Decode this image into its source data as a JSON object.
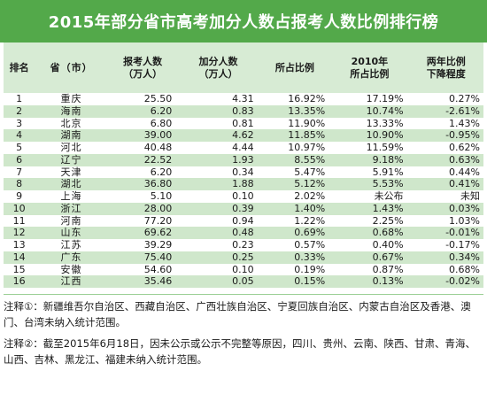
{
  "title": "2015年部分省市高考加分人数占报考人数比例排行榜",
  "columns": [
    {
      "l1": "排名",
      "l2": ""
    },
    {
      "l1": "省（市）",
      "l2": ""
    },
    {
      "l1": "报考人数",
      "l2": "（万人）"
    },
    {
      "l1": "加分人数",
      "l2": "（万人）"
    },
    {
      "l1": "所占比例",
      "l2": ""
    },
    {
      "l1": "2010年",
      "l2": "所占比例"
    },
    {
      "l1": "两年比例",
      "l2": "下降程度"
    }
  ],
  "rows": [
    [
      "1",
      "重庆",
      "25.50",
      "4.31",
      "16.92%",
      "17.19%",
      "0.27%"
    ],
    [
      "2",
      "海南",
      "6.20",
      "0.83",
      "13.35%",
      "10.74%",
      "-2.61%"
    ],
    [
      "3",
      "北京",
      "6.80",
      "0.81",
      "11.90%",
      "13.33%",
      "1.43%"
    ],
    [
      "4",
      "湖南",
      "39.00",
      "4.62",
      "11.85%",
      "10.90%",
      "-0.95%"
    ],
    [
      "5",
      "河北",
      "40.48",
      "4.44",
      "10.97%",
      "11.59%",
      "0.62%"
    ],
    [
      "6",
      "辽宁",
      "22.52",
      "1.93",
      "8.55%",
      "9.18%",
      "0.63%"
    ],
    [
      "7",
      "天津",
      "6.20",
      "0.34",
      "5.47%",
      "5.91%",
      "0.44%"
    ],
    [
      "8",
      "湖北",
      "36.80",
      "1.88",
      "5.12%",
      "5.53%",
      "0.41%"
    ],
    [
      "9",
      "上海",
      "5.10",
      "0.10",
      "2.02%",
      "未公布",
      "未知"
    ],
    [
      "10",
      "浙江",
      "28.00",
      "0.39",
      "1.40%",
      "1.43%",
      "0.03%"
    ],
    [
      "11",
      "河南",
      "77.20",
      "0.94",
      "1.22%",
      "2.25%",
      "1.03%"
    ],
    [
      "12",
      "山东",
      "69.62",
      "0.48",
      "0.69%",
      "0.68%",
      "-0.01%"
    ],
    [
      "13",
      "江苏",
      "39.29",
      "0.23",
      "0.57%",
      "0.40%",
      "-0.17%"
    ],
    [
      "14",
      "广东",
      "75.40",
      "0.25",
      "0.33%",
      "0.67%",
      "0.34%"
    ],
    [
      "15",
      "安徽",
      "54.60",
      "0.10",
      "0.19%",
      "0.87%",
      "0.68%"
    ],
    [
      "16",
      "江西",
      "35.46",
      "0.05",
      "0.15%",
      "0.13%",
      "-0.02%"
    ]
  ],
  "notes": [
    "注释①：新疆维吾尔自治区、西藏自治区、广西壮族自治区、宁夏回族自治区、内蒙古自治区及香港、澳门、台湾未纳入统计范围。",
    "注释②：截至2015年6月18日，因未公示或公示不完整等原因，四川、贵州、云南、陕西、甘肃、青海、山西、吉林、黑龙江、福建未纳入统计范围。"
  ],
  "colors": {
    "title_bg": "#53a94a",
    "header_bg": "#d7ebd4",
    "alt_row_bg": "#cfe7cb"
  }
}
